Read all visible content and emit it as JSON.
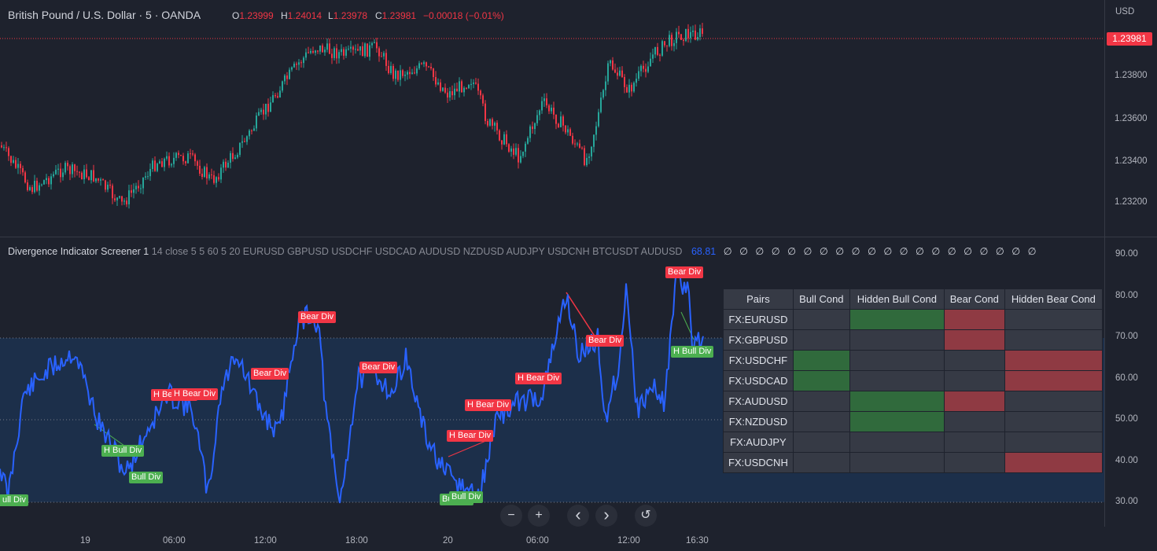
{
  "header": {
    "symbol_title": "British Pound / U.S. Dollar · 5 · OANDA",
    "ohlc": [
      {
        "k": "O",
        "v": "1.23999"
      },
      {
        "k": "H",
        "v": "1.24014"
      },
      {
        "k": "L",
        "v": "1.23978"
      },
      {
        "k": "C",
        "v": "1.23981"
      }
    ],
    "change": "−0.00018 (−0.01%)"
  },
  "price_axis": {
    "currency": "USD",
    "current_price": "1.23981",
    "ticks": [
      "1.23800",
      "1.23600",
      "1.23400",
      "1.23200"
    ]
  },
  "indicator": {
    "name": "Divergence Indicator Screener 1",
    "params": "14 close 5 5 60 5 20 EURUSD GBPUSD USDCHF USDCAD AUDUSD NZDUSD AUDJPY USDCNH BTCUSDT AUDUSD",
    "value": "68.81",
    "zeros": "∅ ∅ ∅ ∅ ∅ ∅ ∅ ∅ ∅ ∅ ∅ ∅ ∅ ∅ ∅ ∅ ∅ ∅ ∅ ∅",
    "axis_ticks": [
      "90.00",
      "80.00",
      "70.00",
      "60.00",
      "50.00",
      "40.00",
      "30.00"
    ],
    "labels": {
      "bear_1": "Bear Div",
      "bear_2": "Bear Div",
      "bear_3": "Bear Div",
      "bear_4": "Bear Div",
      "bear_5": "Bear Div",
      "hbear_1": "H Bear Div",
      "hbear_2": "H Bear Div",
      "hbear_3": "H Bear Div",
      "hbear_4": "H Bear Div",
      "hbear_5": "H Bear Div",
      "hbull_1": "H Bull Div",
      "hbull_2": "H Bull Div",
      "bull_1": "Bull Div",
      "bull_2": "Bull Div",
      "bull_3": "Bull Div",
      "bull_edge": "ull Div"
    }
  },
  "screener": {
    "headers": [
      "Pairs",
      "Bull Cond",
      "Hidden Bull Cond",
      "Bear Cond",
      "Hidden Bear Cond"
    ],
    "rows": [
      {
        "pair": "FX:EURUSD",
        "cells": [
          "none",
          "bull",
          "bear",
          "none"
        ]
      },
      {
        "pair": "FX:GBPUSD",
        "cells": [
          "none",
          "none",
          "bear",
          "none"
        ]
      },
      {
        "pair": "FX:USDCHF",
        "cells": [
          "bull",
          "none",
          "none",
          "bear"
        ]
      },
      {
        "pair": "FX:USDCAD",
        "cells": [
          "bull",
          "none",
          "none",
          "bear"
        ]
      },
      {
        "pair": "FX:AUDUSD",
        "cells": [
          "none",
          "bull",
          "bear",
          "none"
        ]
      },
      {
        "pair": "FX:NZDUSD",
        "cells": [
          "none",
          "bull",
          "none",
          "none"
        ]
      },
      {
        "pair": "FX:AUDJPY",
        "cells": [
          "none",
          "none",
          "none",
          "none"
        ]
      },
      {
        "pair": "FX:USDCNH",
        "cells": [
          "none",
          "none",
          "none",
          "bear"
        ]
      }
    ]
  },
  "time_axis": {
    "ticks": [
      "19",
      "06:00",
      "12:00",
      "18:00",
      "20",
      "06:00",
      "12:00",
      "16:30"
    ]
  },
  "controls": {
    "zoom_out": "−",
    "zoom_in": "+",
    "scroll_left": "‹",
    "scroll_right": "›",
    "reset": "↺"
  },
  "colors": {
    "up": "#26a69a",
    "down": "#f23645",
    "oscillator": "#2962ff",
    "bull_label": "#4caf50",
    "bear_label": "#f23645",
    "band": "#1c2f4a"
  }
}
